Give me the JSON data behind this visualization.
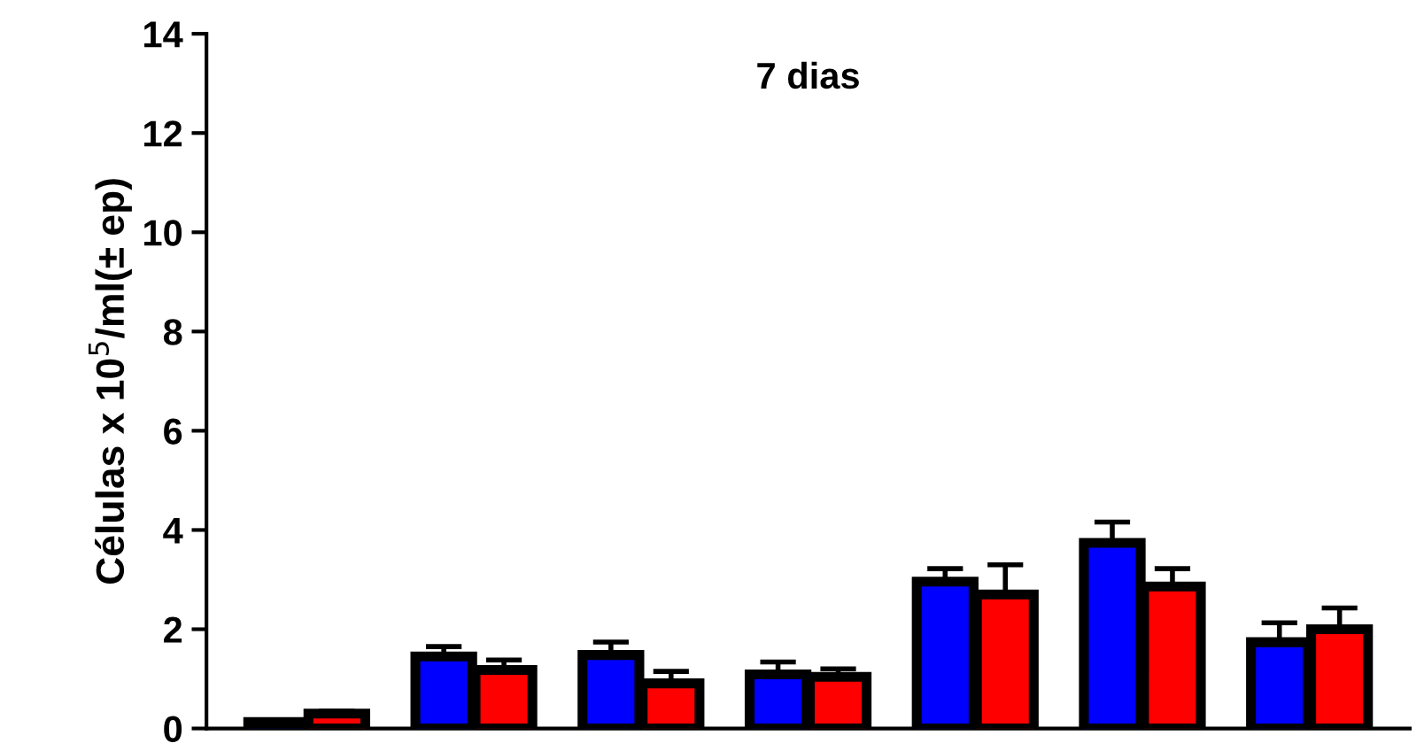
{
  "chart_data": {
    "type": "bar",
    "title": "7 dias",
    "ylabel": "Células x 10$^{5}$/ml(± ep)",
    "categories": [
      null,
      null,
      null,
      null,
      null,
      null,
      null
    ],
    "series": [
      {
        "color": "#0000ff",
        "values": [
          0.13,
          1.45,
          1.48,
          1.09,
          2.96,
          3.74,
          1.74
        ],
        "errors": [
          null,
          0.2,
          0.26,
          0.25,
          0.26,
          0.42,
          0.39
        ]
      },
      {
        "color": "#ff0000",
        "values": [
          0.3,
          1.18,
          0.91,
          1.04,
          2.7,
          2.86,
          2.0
        ],
        "errors": [
          0.05,
          0.2,
          0.24,
          0.16,
          0.6,
          0.36,
          0.43
        ]
      }
    ],
    "ylim": [
      0,
      14
    ],
    "yticks": [
      0,
      2,
      4,
      6,
      8,
      10,
      12,
      14
    ],
    "grid": false,
    "legend": false
  }
}
